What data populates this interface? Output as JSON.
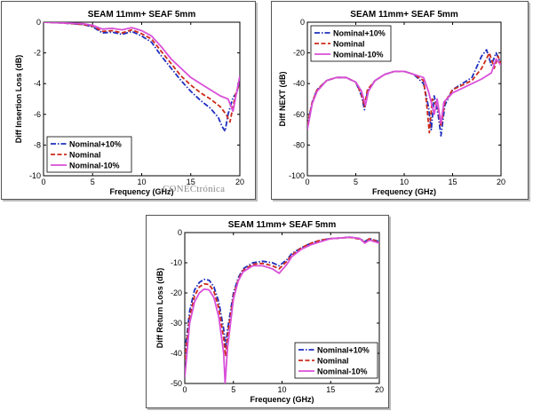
{
  "watermark": "CONECtrónica",
  "chart_data": [
    {
      "type": "line",
      "title": "SEAM 11mm+ SEAF 5mm",
      "xlabel": "Frequency (GHz)",
      "ylabel": "Diff Insertion Loss (dB)",
      "xlim": [
        0,
        20
      ],
      "ylim": [
        -10,
        0
      ],
      "xticks": [
        "0",
        "5",
        "10",
        "15",
        "20"
      ],
      "yticks": [
        "0",
        "-2",
        "-4",
        "-6",
        "-8",
        "-10"
      ],
      "legend_position": "bottom-left",
      "series": [
        {
          "name": "Nominal+10%",
          "color": "#1f2fbf",
          "dash": "dashdot",
          "points": [
            [
              0,
              0
            ],
            [
              2,
              -0.05
            ],
            [
              4,
              -0.15
            ],
            [
              5,
              -0.3
            ],
            [
              6,
              -0.7
            ],
            [
              7,
              -0.65
            ],
            [
              8,
              -0.8
            ],
            [
              9,
              -0.6
            ],
            [
              10,
              -0.9
            ],
            [
              11,
              -1.3
            ],
            [
              12,
              -2.2
            ],
            [
              13,
              -3.0
            ],
            [
              14,
              -3.8
            ],
            [
              15,
              -4.5
            ],
            [
              16,
              -5.1
            ],
            [
              17,
              -5.6
            ],
            [
              17.8,
              -6.2
            ],
            [
              18.2,
              -6.8
            ],
            [
              18.5,
              -7.1
            ],
            [
              18.8,
              -6.0
            ],
            [
              19.3,
              -4.9
            ],
            [
              19.7,
              -4.6
            ],
            [
              20,
              -3.7
            ]
          ]
        },
        {
          "name": "Nominal",
          "color": "#cc2a1a",
          "dash": "dash",
          "points": [
            [
              0,
              0
            ],
            [
              2,
              -0.05
            ],
            [
              4,
              -0.15
            ],
            [
              5,
              -0.25
            ],
            [
              6,
              -0.6
            ],
            [
              7,
              -0.55
            ],
            [
              8,
              -0.7
            ],
            [
              9,
              -0.5
            ],
            [
              10,
              -0.75
            ],
            [
              11,
              -1.1
            ],
            [
              12,
              -1.9
            ],
            [
              13,
              -2.7
            ],
            [
              14,
              -3.5
            ],
            [
              15,
              -4.1
            ],
            [
              16,
              -4.6
            ],
            [
              17,
              -5.0
            ],
            [
              18,
              -5.5
            ],
            [
              18.6,
              -6.0
            ],
            [
              19,
              -6.5
            ],
            [
              19.3,
              -5.5
            ],
            [
              19.6,
              -4.6
            ],
            [
              20,
              -4.0
            ]
          ]
        },
        {
          "name": "Nominal-10%",
          "color": "#d94fd9",
          "dash": "solid",
          "points": [
            [
              0,
              0
            ],
            [
              2,
              -0.05
            ],
            [
              4,
              -0.1
            ],
            [
              5,
              -0.2
            ],
            [
              6,
              -0.45
            ],
            [
              7,
              -0.4
            ],
            [
              8,
              -0.5
            ],
            [
              9,
              -0.35
            ],
            [
              10,
              -0.55
            ],
            [
              11,
              -0.9
            ],
            [
              12,
              -1.6
            ],
            [
              13,
              -2.4
            ],
            [
              14,
              -3.0
            ],
            [
              15,
              -3.6
            ],
            [
              16,
              -4.0
            ],
            [
              17,
              -4.4
            ],
            [
              18,
              -4.8
            ],
            [
              18.8,
              -5.0
            ],
            [
              19.3,
              -5.8
            ],
            [
              19.6,
              -4.8
            ],
            [
              20,
              -3.5
            ]
          ]
        }
      ]
    },
    {
      "type": "line",
      "title": "SEAM 11mm+ SEAF 5mm",
      "xlabel": "Frequency (GHz)",
      "ylabel": "Diff NEXT (dB)",
      "xlim": [
        0,
        20
      ],
      "ylim": [
        -100,
        0
      ],
      "xticks": [
        "0",
        "5",
        "10",
        "15",
        "20"
      ],
      "yticks": [
        "0",
        "-20",
        "-40",
        "-60",
        "-80",
        "-100"
      ],
      "legend_position": "top-left",
      "series": [
        {
          "name": "Nominal+10%",
          "color": "#1f2fbf",
          "dash": "dashdot",
          "points": [
            [
              0,
              -67
            ],
            [
              0.5,
              -52
            ],
            [
              1,
              -44
            ],
            [
              2,
              -38
            ],
            [
              3,
              -36
            ],
            [
              4,
              -36
            ],
            [
              5,
              -39
            ],
            [
              5.6,
              -48
            ],
            [
              5.9,
              -57
            ],
            [
              6.2,
              -45
            ],
            [
              7,
              -38
            ],
            [
              8,
              -34
            ],
            [
              9,
              -32
            ],
            [
              10,
              -32
            ],
            [
              11,
              -34
            ],
            [
              12,
              -40
            ],
            [
              12.5,
              -55
            ],
            [
              12.8,
              -70
            ],
            [
              13.1,
              -48
            ],
            [
              13.5,
              -60
            ],
            [
              13.8,
              -74
            ],
            [
              14.2,
              -54
            ],
            [
              15,
              -44
            ],
            [
              16,
              -40
            ],
            [
              17,
              -36
            ],
            [
              18,
              -22
            ],
            [
              18.5,
              -18
            ],
            [
              19,
              -28
            ],
            [
              19.5,
              -20
            ],
            [
              20,
              -27
            ]
          ]
        },
        {
          "name": "Nominal",
          "color": "#cc2a1a",
          "dash": "dash",
          "points": [
            [
              0,
              -67
            ],
            [
              0.5,
              -52
            ],
            [
              1,
              -44
            ],
            [
              2,
              -38
            ],
            [
              3,
              -36
            ],
            [
              4,
              -36
            ],
            [
              5,
              -39
            ],
            [
              5.6,
              -47
            ],
            [
              5.9,
              -55
            ],
            [
              6.2,
              -44
            ],
            [
              7,
              -38
            ],
            [
              8,
              -34
            ],
            [
              9,
              -32
            ],
            [
              10,
              -32
            ],
            [
              11,
              -34
            ],
            [
              12,
              -38
            ],
            [
              12.3,
              -52
            ],
            [
              12.6,
              -72
            ],
            [
              12.9,
              -50
            ],
            [
              13.5,
              -56
            ],
            [
              13.8,
              -68
            ],
            [
              14.2,
              -52
            ],
            [
              15,
              -44
            ],
            [
              16,
              -41
            ],
            [
              17,
              -38
            ],
            [
              18,
              -30
            ],
            [
              18.8,
              -20
            ],
            [
              19.3,
              -30
            ],
            [
              19.7,
              -22
            ],
            [
              20,
              -28
            ]
          ]
        },
        {
          "name": "Nominal-10%",
          "color": "#d94fd9",
          "dash": "solid",
          "points": [
            [
              0,
              -70
            ],
            [
              0.5,
              -53
            ],
            [
              1,
              -45
            ],
            [
              2,
              -38
            ],
            [
              3,
              -36
            ],
            [
              4,
              -36
            ],
            [
              5,
              -39
            ],
            [
              5.6,
              -45
            ],
            [
              6,
              -54
            ],
            [
              6.3,
              -45
            ],
            [
              7,
              -38
            ],
            [
              8,
              -34
            ],
            [
              9,
              -32
            ],
            [
              10,
              -32
            ],
            [
              11,
              -34
            ],
            [
              12,
              -36
            ],
            [
              12.5,
              -45
            ],
            [
              13.1,
              -60
            ],
            [
              13.4,
              -50
            ],
            [
              13.8,
              -66
            ],
            [
              14.1,
              -52
            ],
            [
              15,
              -46
            ],
            [
              16,
              -43
            ],
            [
              17,
              -40
            ],
            [
              18,
              -37
            ],
            [
              19,
              -33
            ],
            [
              19.5,
              -24
            ],
            [
              20,
              -28
            ]
          ]
        }
      ]
    },
    {
      "type": "line",
      "title": "SEAM 11mm+ SEAF 5mm",
      "xlabel": "Frequency (GHz)",
      "ylabel": "Diff Return Loss (dB)",
      "xlim": [
        0,
        20
      ],
      "ylim": [
        -50,
        0
      ],
      "xticks": [
        "0",
        "5",
        "10",
        "15",
        "20"
      ],
      "yticks": [
        "0",
        "-10",
        "-20",
        "-30",
        "-40",
        "-50"
      ],
      "legend_position": "bottom-right",
      "series": [
        {
          "name": "Nominal+10%",
          "color": "#1f2fbf",
          "dash": "dashdot",
          "points": [
            [
              0,
              -40
            ],
            [
              0.5,
              -26
            ],
            [
              1,
              -19
            ],
            [
              1.5,
              -16.5
            ],
            [
              2,
              -15.5
            ],
            [
              2.5,
              -15.8
            ],
            [
              3,
              -18
            ],
            [
              3.5,
              -23
            ],
            [
              4,
              -32
            ],
            [
              4.2,
              -38
            ],
            [
              4.4,
              -32
            ],
            [
              5,
              -20
            ],
            [
              5.5,
              -15
            ],
            [
              6,
              -12
            ],
            [
              7,
              -10
            ],
            [
              8,
              -9.5
            ],
            [
              9,
              -10
            ],
            [
              9.7,
              -11
            ],
            [
              10.5,
              -9
            ],
            [
              11,
              -7
            ],
            [
              12,
              -5
            ],
            [
              13,
              -3.5
            ],
            [
              14,
              -2.5
            ],
            [
              15,
              -2
            ],
            [
              16,
              -1.8
            ],
            [
              17,
              -1.5
            ],
            [
              18,
              -2
            ],
            [
              18.5,
              -3
            ],
            [
              19,
              -2
            ],
            [
              20,
              -3
            ]
          ]
        },
        {
          "name": "Nominal",
          "color": "#cc2a1a",
          "dash": "dash",
          "points": [
            [
              0,
              -42
            ],
            [
              0.5,
              -28
            ],
            [
              1,
              -21
            ],
            [
              1.5,
              -18
            ],
            [
              2,
              -17
            ],
            [
              2.5,
              -17.2
            ],
            [
              3,
              -19.5
            ],
            [
              3.5,
              -25
            ],
            [
              4,
              -35
            ],
            [
              4.2,
              -41
            ],
            [
              4.4,
              -34
            ],
            [
              5,
              -21
            ],
            [
              5.5,
              -15.5
            ],
            [
              6,
              -12.5
            ],
            [
              7,
              -10.5
            ],
            [
              8,
              -10.2
            ],
            [
              9,
              -11
            ],
            [
              9.7,
              -12
            ],
            [
              10.5,
              -9.5
            ],
            [
              11,
              -7.5
            ],
            [
              12,
              -5
            ],
            [
              13,
              -3.5
            ],
            [
              14,
              -2.5
            ],
            [
              15,
              -2
            ],
            [
              16,
              -1.8
            ],
            [
              17,
              -1.6
            ],
            [
              18,
              -2.2
            ],
            [
              18.5,
              -3.2
            ],
            [
              19,
              -2
            ],
            [
              20,
              -3.2
            ]
          ]
        },
        {
          "name": "Nominal-10%",
          "color": "#d94fd9",
          "dash": "solid",
          "points": [
            [
              0,
              -48
            ],
            [
              0.5,
              -30
            ],
            [
              1,
              -23
            ],
            [
              1.5,
              -20
            ],
            [
              2,
              -18.7
            ],
            [
              2.5,
              -19
            ],
            [
              3,
              -21.5
            ],
            [
              3.5,
              -28
            ],
            [
              4,
              -40
            ],
            [
              4.15,
              -50
            ],
            [
              4.4,
              -38
            ],
            [
              5,
              -22
            ],
            [
              5.5,
              -16
            ],
            [
              6,
              -13
            ],
            [
              7,
              -11
            ],
            [
              8,
              -11
            ],
            [
              9,
              -12
            ],
            [
              9.7,
              -13.5
            ],
            [
              10.5,
              -10.5
            ],
            [
              11,
              -8
            ],
            [
              12,
              -5.5
            ],
            [
              13,
              -4
            ],
            [
              14,
              -3
            ],
            [
              15,
              -2
            ],
            [
              16,
              -1.8
            ],
            [
              17,
              -1.5
            ],
            [
              18,
              -2
            ],
            [
              18.5,
              -3.5
            ],
            [
              19,
              -2.5
            ],
            [
              20,
              -3.5
            ]
          ]
        }
      ]
    }
  ]
}
